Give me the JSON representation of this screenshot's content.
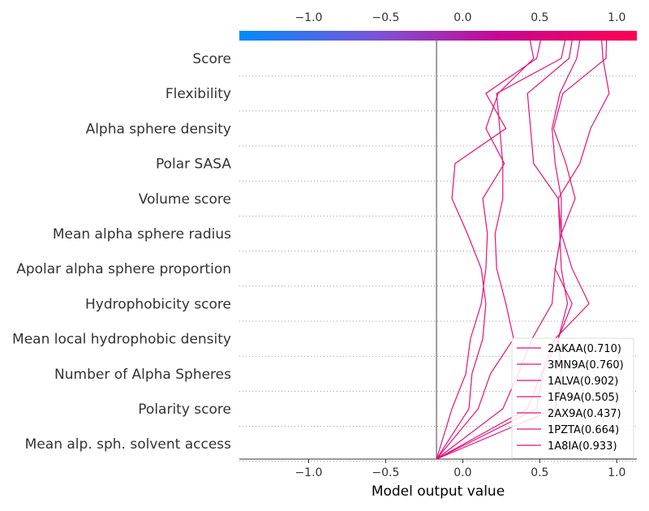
{
  "chart_data": {
    "type": "line",
    "subtype": "shap-decision-plot",
    "xlabel": "Model output value",
    "xlim": [
      -1.45,
      1.13
    ],
    "xticks": [
      -1.0,
      -0.5,
      0.0,
      0.5,
      1.0
    ],
    "xtick_labels": [
      "−1.0",
      "−0.5",
      "0.0",
      "0.5",
      "1.0"
    ],
    "base_value": -0.17,
    "features": [
      "Score",
      "Flexibility",
      "Alpha sphere density",
      "Polar SASA",
      "Volume score",
      "Mean alpha sphere radius",
      "Apolar alpha sphere proportion",
      "Hydrophobicity score",
      "Mean local hydrophobic density",
      "Number of Alpha Spheres",
      "Polarity score",
      "Mean alp. sph. solvent access"
    ],
    "colorbar": {
      "min": -1.45,
      "max": 1.13,
      "colors": [
        "#008bfb",
        "#7c52d8",
        "#c50894",
        "#ff0051"
      ]
    },
    "line_color": "#e3137c",
    "legend_position": "lower-right",
    "grid": "horizontal-dotted",
    "series": [
      {
        "name": "2AKAA(0.710)",
        "values": [
          0.69,
          0.42,
          0.44,
          0.46,
          0.62,
          0.63,
          0.64,
          0.68,
          0.62,
          0.64,
          0.6,
          -0.17
        ],
        "final": 0.71
      },
      {
        "name": "3MN9A(0.760)",
        "values": [
          0.74,
          0.63,
          0.58,
          0.6,
          0.64,
          0.64,
          0.6,
          0.58,
          0.45,
          0.36,
          0.26,
          -0.17
        ],
        "final": 0.76
      },
      {
        "name": "1ALVA(0.902)",
        "values": [
          0.91,
          0.95,
          0.83,
          0.76,
          0.62,
          0.64,
          0.71,
          0.82,
          0.6,
          0.51,
          0.42,
          -0.17
        ],
        "final": 0.902
      },
      {
        "name": "1FA9A(0.505)",
        "values": [
          0.48,
          0.15,
          0.28,
          -0.05,
          -0.07,
          0.03,
          0.12,
          0.15,
          0.13,
          0.06,
          0.04,
          -0.17
        ],
        "final": 0.505
      },
      {
        "name": "2AX9A(0.437)",
        "values": [
          0.46,
          0.23,
          0.15,
          0.27,
          0.13,
          0.16,
          0.15,
          0.12,
          0.05,
          0.02,
          -0.07,
          -0.17
        ],
        "final": 0.437
      },
      {
        "name": "1PZTA(0.664)",
        "values": [
          0.64,
          0.22,
          0.24,
          0.26,
          0.26,
          0.21,
          0.22,
          0.28,
          0.33,
          0.18,
          0.1,
          -0.17
        ],
        "final": 0.664
      },
      {
        "name": "1A8IA(0.933)",
        "values": [
          0.93,
          0.65,
          0.59,
          0.67,
          0.73,
          0.64,
          0.6,
          0.71,
          0.62,
          0.52,
          0.48,
          -0.17
        ],
        "final": 0.933
      }
    ]
  }
}
